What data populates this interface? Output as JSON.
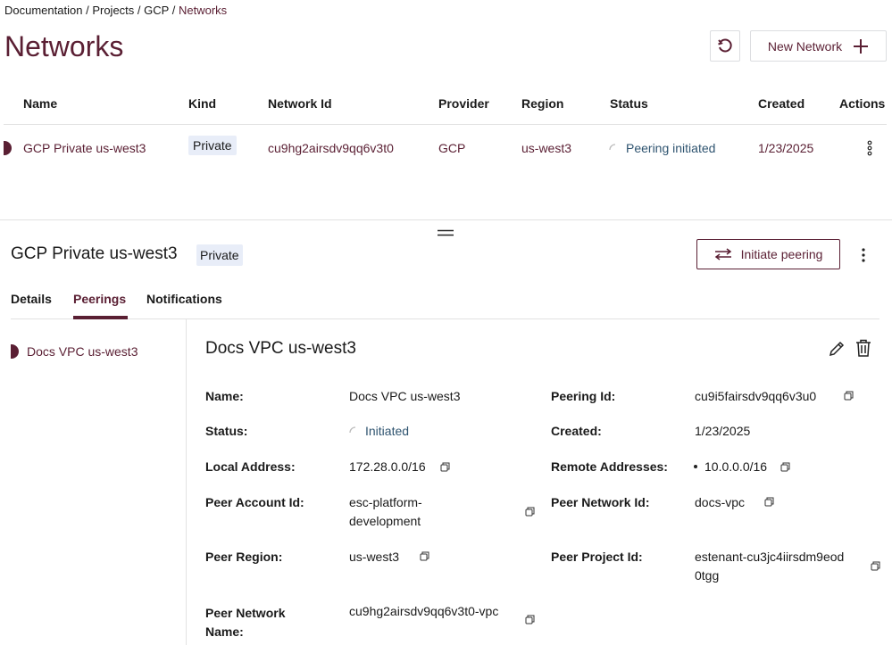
{
  "breadcrumb": {
    "items": [
      "Documentation",
      "Projects",
      "GCP"
    ],
    "separator": "/",
    "current": "Networks"
  },
  "page_title": "Networks",
  "toolbar": {
    "refresh_icon": "refresh-icon",
    "new_network_label": "New Network",
    "plus_icon": "plus-icon"
  },
  "table": {
    "headers": [
      "Name",
      "Kind",
      "Network Id",
      "Provider",
      "Region",
      "Status",
      "Created",
      "Actions"
    ],
    "rows": [
      {
        "name": "GCP Private us-west3",
        "kind": "Private",
        "network_id": "cu9hg2airsdv9qq6v3t0",
        "provider": "GCP",
        "region": "us-west3",
        "status": "Peering initiated",
        "created": "1/23/2025"
      }
    ]
  },
  "detail": {
    "title": "GCP Private us-west3",
    "kind": "Private",
    "initiate_label": "Initiate peering",
    "tabs": [
      "Details",
      "Peerings",
      "Notifications"
    ],
    "active_tab": "Peerings",
    "peerings": [
      "Docs VPC us-west3"
    ],
    "peering": {
      "title": "Docs VPC us-west3",
      "fields": {
        "name": {
          "label": "Name:",
          "value": "Docs VPC us-west3"
        },
        "status": {
          "label": "Status:",
          "value": "Initiated"
        },
        "local_address": {
          "label": "Local Address:",
          "value": "172.28.0.0/16"
        },
        "peer_account": {
          "label": "Peer Account Id:",
          "value": "esc-platform-development"
        },
        "peer_region": {
          "label": "Peer Region:",
          "value": "us-west3"
        },
        "peer_network_name": {
          "label": "Peer Network Name:",
          "value": "cu9hg2airsdv9qq6v3t0-vpc"
        },
        "peering_id": {
          "label": "Peering Id:",
          "value": "cu9i5fairsdv9qq6v3u0"
        },
        "created": {
          "label": "Created:",
          "value": "1/23/2025"
        },
        "remote_addresses": {
          "label": "Remote Addresses:",
          "value": "10.0.0.0/16"
        },
        "peer_network_id": {
          "label": "Peer Network Id:",
          "value": "docs-vpc"
        },
        "peer_project_id": {
          "label": "Peer Project Id:",
          "value": "estenant-cu3jc4iirsdm9eod0tgg"
        }
      }
    }
  },
  "colors": {
    "accent": "#5a1f33",
    "status": "#2f5470",
    "badge_bg": "#e8edf8"
  }
}
